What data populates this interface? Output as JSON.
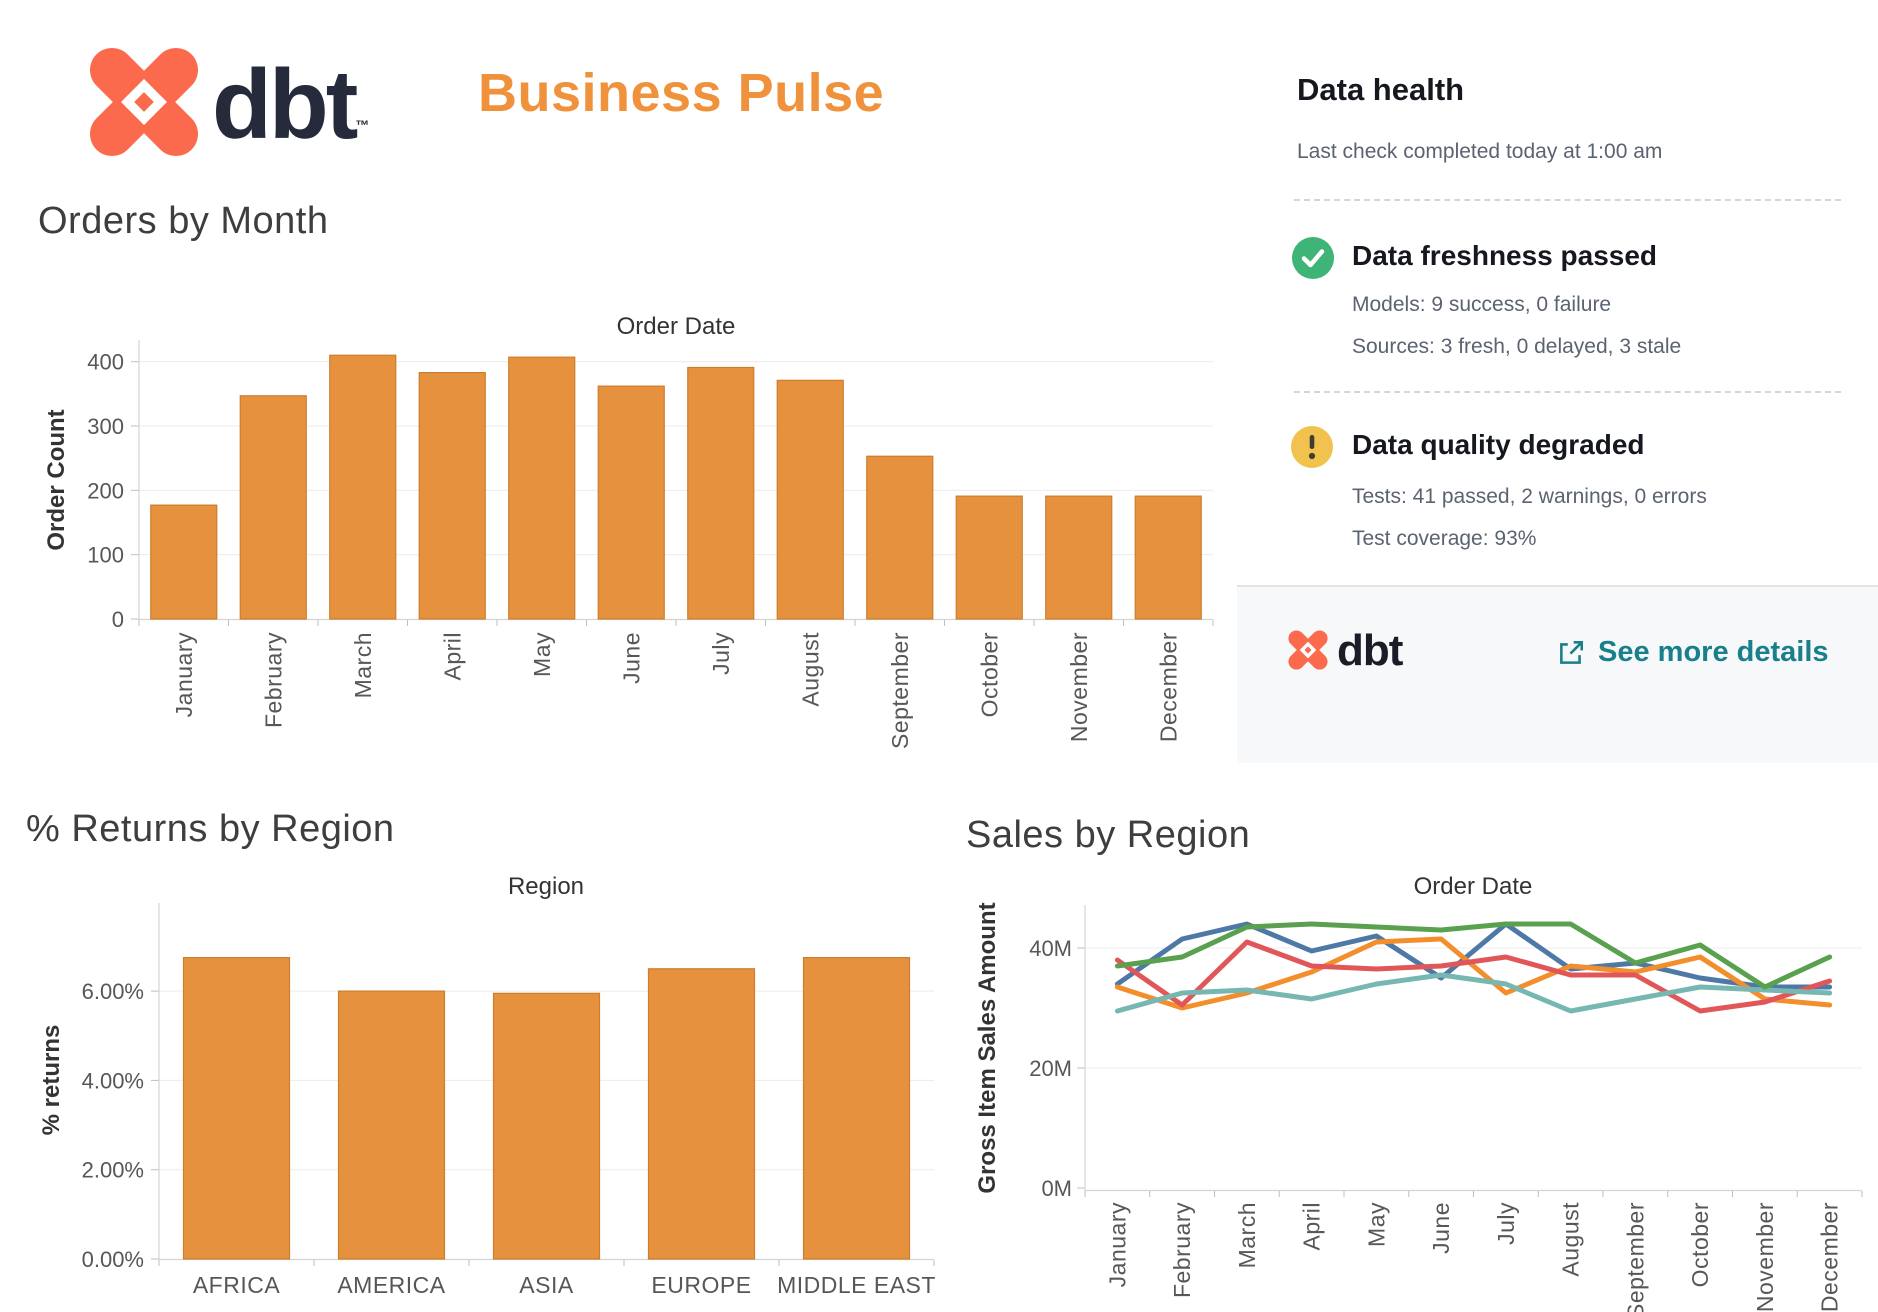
{
  "brand": {
    "wordmark": "dbt",
    "trademark": "™"
  },
  "page_title": "Business Pulse",
  "colors": {
    "title_orange": "#F0913B",
    "logo_coral": "#FB6A4D",
    "wordmark_navy": "#252B3B",
    "bar_orange": "#E6913E",
    "bar_border": "#CE7D2C",
    "link_teal": "#187F8B",
    "success_green": "#3EB576",
    "warning_yellow": "#F2C24E"
  },
  "data_health": {
    "title": "Data health",
    "subtitle": "Last check completed today at 1:00 am",
    "freshness": {
      "title": "Data freshness passed",
      "models": "Models: 9 success, 0 failure",
      "sources": "Sources: 3 fresh, 0 delayed, 3 stale"
    },
    "quality": {
      "title": "Data quality degraded",
      "tests": "Tests: 41 passed, 2 warnings, 0 errors",
      "coverage": "Test coverage: 93%"
    },
    "footer": {
      "brand": "dbt",
      "link_label": "See more details"
    }
  },
  "chart_data": [
    {
      "id": "orders-by-month",
      "type": "bar",
      "section_title": "Orders by Month",
      "axis_title": "Order Date",
      "ylabel": "Order Count",
      "categories": [
        "January",
        "February",
        "March",
        "April",
        "May",
        "June",
        "July",
        "August",
        "September",
        "October",
        "November",
        "December"
      ],
      "values": [
        177,
        347,
        410,
        383,
        407,
        362,
        391,
        371,
        253,
        191,
        191,
        191
      ],
      "yticks": [
        0,
        100,
        200,
        300,
        400
      ],
      "ytick_labels": [
        "0",
        "100",
        "200",
        "300",
        "400"
      ],
      "ylim": [
        0,
        434
      ],
      "grid": true,
      "legend": "none"
    },
    {
      "id": "returns-by-region",
      "type": "bar",
      "section_title": "% Returns by Region",
      "axis_title": "Region",
      "ylabel": "% returns",
      "categories": [
        "AFRICA",
        "AMERICA",
        "ASIA",
        "EUROPE",
        "MIDDLE EAST"
      ],
      "values": [
        6.75,
        6.0,
        5.95,
        6.5,
        6.75
      ],
      "yticks": [
        0,
        2,
        4,
        6
      ],
      "ytick_labels": [
        "0.00%",
        "2.00%",
        "4.00%",
        "6.00%"
      ],
      "ylim": [
        0,
        7.97
      ],
      "grid": true,
      "legend": "none"
    },
    {
      "id": "sales-by-region",
      "type": "line",
      "section_title": "Sales by Region",
      "axis_title": "Order Date",
      "ylabel": "Gross Item Sales Amount",
      "unit": "millions",
      "categories": [
        "January",
        "February",
        "March",
        "April",
        "May",
        "June",
        "July",
        "August",
        "September",
        "October",
        "November",
        "December"
      ],
      "series": [
        {
          "name": "series-blue",
          "color": "#4E79A7",
          "values": [
            34,
            41.5,
            44,
            39.5,
            42,
            35,
            44,
            36.5,
            37.5,
            35,
            33.5,
            33.5
          ]
        },
        {
          "name": "series-orange",
          "color": "#F28E2B",
          "values": [
            33.5,
            30,
            32.5,
            36,
            41,
            41.5,
            32.5,
            37,
            36,
            38.5,
            31.5,
            30.5
          ]
        },
        {
          "name": "series-red",
          "color": "#E15759",
          "values": [
            38,
            30.5,
            41,
            37,
            36.5,
            37,
            38.5,
            35.5,
            35.5,
            29.5,
            31,
            34.5
          ]
        },
        {
          "name": "series-teal",
          "color": "#76B7B2",
          "values": [
            29.5,
            32.5,
            33,
            31.5,
            34,
            35.5,
            34,
            29.5,
            31.5,
            33.5,
            33,
            32.5
          ]
        },
        {
          "name": "series-green",
          "color": "#59A14F",
          "values": [
            37,
            38.5,
            43.5,
            44,
            43.5,
            43,
            44,
            44,
            37.5,
            40.5,
            33.5,
            38.5
          ]
        }
      ],
      "yticks": [
        0,
        20,
        40
      ],
      "ytick_labels": [
        "0M",
        "20M",
        "40M"
      ],
      "ylim": [
        0,
        47
      ],
      "grid": true,
      "legend": "none"
    }
  ]
}
